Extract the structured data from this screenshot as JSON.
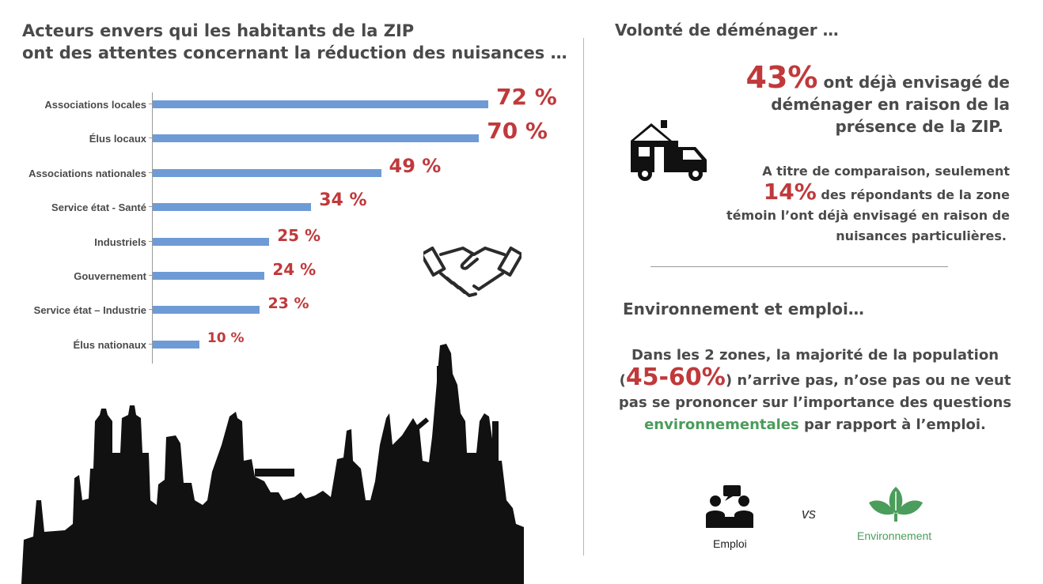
{
  "left": {
    "title_line1": "Acteurs envers qui les habitants de la ZIP",
    "title_line2": "ont des attentes concernant la réduction des nuisances …"
  },
  "chart_data": {
    "type": "bar",
    "orientation": "horizontal",
    "categories": [
      "Associations locales",
      "Élus locaux",
      "Associations nationales",
      "Service état - Santé",
      "Industriels",
      "Gouvernement",
      "Service état – Industrie",
      "Élus nationaux"
    ],
    "values": [
      72,
      70,
      49,
      34,
      25,
      24,
      23,
      10
    ],
    "value_labels": [
      "72 %",
      "70 %",
      "49 %",
      "34 %",
      "25 %",
      "24 %",
      "23 %",
      "10 %"
    ],
    "xlim": [
      0,
      100
    ],
    "bar_color": "#6e9bd6",
    "label_color": "#c0393b"
  },
  "right": {
    "section1_title": "Volonté de déménager …",
    "stat1_value": "43%",
    "stat1_text_a": " ont déjà envisagé de",
    "stat1_text_b": "déménager en raison de la",
    "stat1_text_c": "présence de la ZIP.",
    "comp_text_a": "A titre de comparaison, seulement",
    "stat2_value": "14%",
    "comp_text_b": " des répondants de la zone",
    "comp_text_c": "témoin l’ont déjà envisagé en raison de",
    "comp_text_d": "nuisances particulières.",
    "section2_title": "Environnement et emploi…",
    "para_line1": "Dans les 2 zones, la majorité de la population",
    "para_open": "(",
    "stat3_value": "45-60%",
    "para_line2": ") n’arrive pas, n’ose pas ou ne veut",
    "para_line3": "pas se prononcer sur l’importance des questions",
    "para_green": "environnementales",
    "para_line4": " par rapport à l’emploi.",
    "emploi_label": "Emploi",
    "vs_label": "vs",
    "env_label": "Environnement"
  },
  "colors": {
    "accent_red": "#c0393b",
    "accent_green": "#4a9d5b",
    "bar_blue": "#6e9bd6"
  },
  "icons": [
    "moving-truck-icon",
    "handshake-icon",
    "people-meeting-icon",
    "leaf-icon",
    "industrial-skyline"
  ]
}
